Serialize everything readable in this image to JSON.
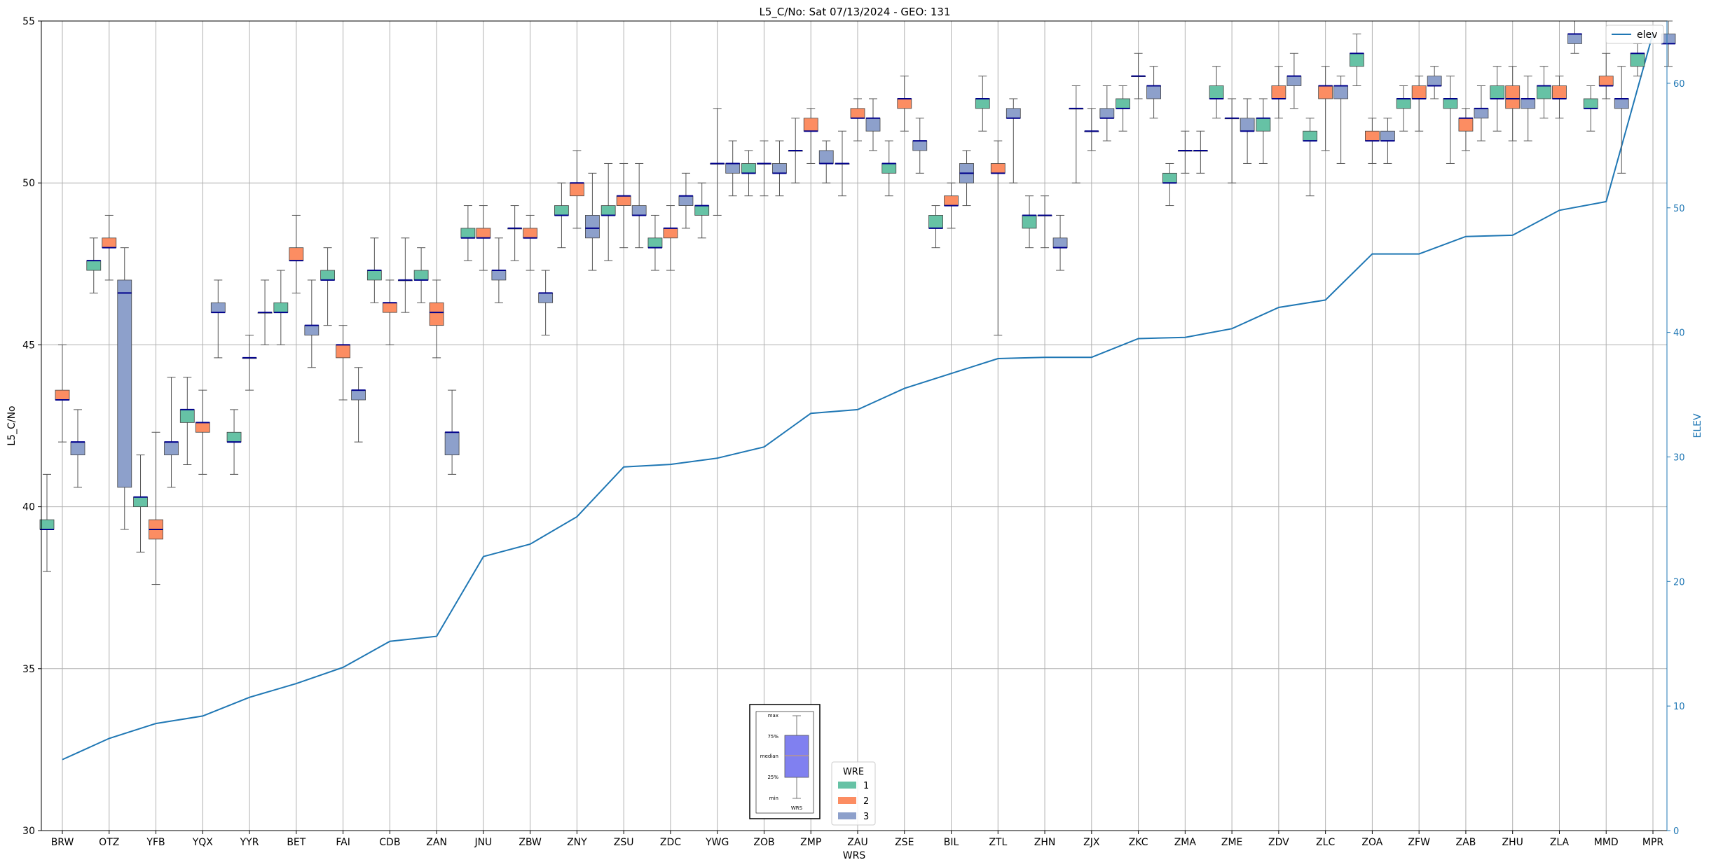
{
  "chart_data": {
    "type": "box",
    "title": "L5_C/No: Sat 07/13/2024 - GEO: 131",
    "xlabel": "WRS",
    "ylabel": "L5_C/No",
    "y2label": "ELEV",
    "ylim": [
      30,
      55
    ],
    "y2lim": [
      0,
      65
    ],
    "yticks": [
      30,
      35,
      40,
      45,
      50,
      55
    ],
    "y2ticks": [
      0,
      10,
      20,
      30,
      40,
      50,
      60
    ],
    "grid": true,
    "categories": [
      "BRW",
      "OTZ",
      "YFB",
      "YQX",
      "YYR",
      "BET",
      "FAI",
      "CDB",
      "ZAN",
      "JNU",
      "ZBW",
      "ZNY",
      "ZSU",
      "ZDC",
      "YWG",
      "ZOB",
      "ZMP",
      "ZAU",
      "ZSE",
      "BIL",
      "ZTL",
      "ZHN",
      "ZJX",
      "ZKC",
      "ZMA",
      "ZME",
      "ZDV",
      "ZLC",
      "ZOA",
      "ZFW",
      "ZAB",
      "ZHU",
      "ZLA",
      "MMD",
      "MPR"
    ],
    "series_colors": {
      "1": "#66c2a5",
      "2": "#fc8d62",
      "3": "#8da0cb"
    },
    "median_color": "#00008b",
    "legend": {
      "title": "WRE",
      "entries": [
        "1",
        "2",
        "3"
      ],
      "placement": "bottom-center"
    },
    "line_legend": {
      "label": "elev",
      "placement": "top-right"
    },
    "elev": [
      5.7,
      7.4,
      8.6,
      9.2,
      10.7,
      11.8,
      13.1,
      15.2,
      15.6,
      22.0,
      23.0,
      25.2,
      29.2,
      29.4,
      29.9,
      30.8,
      33.5,
      33.8,
      35.5,
      36.7,
      37.9,
      38.0,
      38.0,
      39.5,
      39.6,
      40.3,
      42.0,
      42.6,
      46.3,
      46.3,
      47.7,
      47.8,
      49.8,
      50.5,
      64.0
    ],
    "boxes": [
      {
        "station": "BRW",
        "wre": "1",
        "min": 38.0,
        "q1": 39.3,
        "median": 39.3,
        "q3": 39.6,
        "max": 41.0
      },
      {
        "station": "BRW",
        "wre": "2",
        "min": 42.0,
        "q1": 43.3,
        "median": 43.3,
        "q3": 43.6,
        "max": 45.0
      },
      {
        "station": "BRW",
        "wre": "3",
        "min": 40.6,
        "q1": 41.6,
        "median": 42.0,
        "q3": 42.0,
        "max": 43.0
      },
      {
        "station": "OTZ",
        "wre": "1",
        "min": 46.6,
        "q1": 47.3,
        "median": 47.6,
        "q3": 47.6,
        "max": 48.3
      },
      {
        "station": "OTZ",
        "wre": "2",
        "min": 47.0,
        "q1": 48.0,
        "median": 48.0,
        "q3": 48.3,
        "max": 49.0
      },
      {
        "station": "OTZ",
        "wre": "3",
        "min": 39.3,
        "q1": 40.6,
        "median": 46.6,
        "q3": 47.0,
        "max": 48.0
      },
      {
        "station": "YFB",
        "wre": "1",
        "min": 38.6,
        "q1": 40.0,
        "median": 40.3,
        "q3": 40.3,
        "max": 41.6
      },
      {
        "station": "YFB",
        "wre": "2",
        "min": 37.6,
        "q1": 39.0,
        "median": 39.3,
        "q3": 39.6,
        "max": 42.3
      },
      {
        "station": "YFB",
        "wre": "3",
        "min": 40.6,
        "q1": 41.6,
        "median": 42.0,
        "q3": 42.0,
        "max": 44.0
      },
      {
        "station": "YQX",
        "wre": "1",
        "min": 41.3,
        "q1": 42.6,
        "median": 43.0,
        "q3": 43.0,
        "max": 44.0
      },
      {
        "station": "YQX",
        "wre": "2",
        "min": 41.0,
        "q1": 42.3,
        "median": 42.6,
        "q3": 42.6,
        "max": 43.6
      },
      {
        "station": "YQX",
        "wre": "3",
        "min": 44.6,
        "q1": 46.0,
        "median": 46.0,
        "q3": 46.3,
        "max": 47.0
      },
      {
        "station": "YYR",
        "wre": "1",
        "min": 41.0,
        "q1": 42.0,
        "median": 42.0,
        "q3": 42.3,
        "max": 43.0
      },
      {
        "station": "YYR",
        "wre": "2",
        "min": 43.6,
        "q1": 44.6,
        "median": 44.6,
        "q3": 44.6,
        "max": 45.3
      },
      {
        "station": "YYR",
        "wre": "3",
        "min": 45.0,
        "q1": 46.0,
        "median": 46.0,
        "q3": 46.0,
        "max": 47.0
      },
      {
        "station": "BET",
        "wre": "1",
        "min": 45.0,
        "q1": 46.0,
        "median": 46.0,
        "q3": 46.3,
        "max": 47.3
      },
      {
        "station": "BET",
        "wre": "2",
        "min": 46.6,
        "q1": 47.6,
        "median": 47.6,
        "q3": 48.0,
        "max": 49.0
      },
      {
        "station": "BET",
        "wre": "3",
        "min": 44.3,
        "q1": 45.3,
        "median": 45.6,
        "q3": 45.6,
        "max": 47.0
      },
      {
        "station": "FAI",
        "wre": "1",
        "min": 45.6,
        "q1": 47.0,
        "median": 47.0,
        "q3": 47.3,
        "max": 48.0
      },
      {
        "station": "FAI",
        "wre": "2",
        "min": 43.3,
        "q1": 44.6,
        "median": 45.0,
        "q3": 45.0,
        "max": 45.6
      },
      {
        "station": "FAI",
        "wre": "3",
        "min": 42.0,
        "q1": 43.3,
        "median": 43.6,
        "q3": 43.6,
        "max": 44.3
      },
      {
        "station": "CDB",
        "wre": "1",
        "min": 46.3,
        "q1": 47.0,
        "median": 47.3,
        "q3": 47.3,
        "max": 48.3
      },
      {
        "station": "CDB",
        "wre": "2",
        "min": 45.0,
        "q1": 46.0,
        "median": 46.3,
        "q3": 46.3,
        "max": 47.0
      },
      {
        "station": "CDB",
        "wre": "3",
        "min": 46.0,
        "q1": 47.0,
        "median": 47.0,
        "q3": 47.0,
        "max": 48.3
      },
      {
        "station": "ZAN",
        "wre": "1",
        "min": 46.3,
        "q1": 47.0,
        "median": 47.0,
        "q3": 47.3,
        "max": 48.0
      },
      {
        "station": "ZAN",
        "wre": "2",
        "min": 44.6,
        "q1": 45.6,
        "median": 46.0,
        "q3": 46.3,
        "max": 47.0
      },
      {
        "station": "ZAN",
        "wre": "3",
        "min": 41.0,
        "q1": 41.6,
        "median": 42.3,
        "q3": 42.3,
        "max": 43.6
      },
      {
        "station": "JNU",
        "wre": "1",
        "min": 47.6,
        "q1": 48.3,
        "median": 48.3,
        "q3": 48.6,
        "max": 49.3
      },
      {
        "station": "JNU",
        "wre": "2",
        "min": 47.3,
        "q1": 48.3,
        "median": 48.3,
        "q3": 48.6,
        "max": 49.3
      },
      {
        "station": "JNU",
        "wre": "3",
        "min": 46.3,
        "q1": 47.0,
        "median": 47.3,
        "q3": 47.3,
        "max": 48.3
      },
      {
        "station": "ZBW",
        "wre": "1",
        "min": 47.6,
        "q1": 48.6,
        "median": 48.6,
        "q3": 48.6,
        "max": 49.3
      },
      {
        "station": "ZBW",
        "wre": "2",
        "min": 47.3,
        "q1": 48.3,
        "median": 48.3,
        "q3": 48.6,
        "max": 49.0
      },
      {
        "station": "ZBW",
        "wre": "3",
        "min": 45.3,
        "q1": 46.3,
        "median": 46.6,
        "q3": 46.6,
        "max": 47.3
      },
      {
        "station": "ZNY",
        "wre": "1",
        "min": 48.0,
        "q1": 49.0,
        "median": 49.0,
        "q3": 49.3,
        "max": 50.0
      },
      {
        "station": "ZNY",
        "wre": "2",
        "min": 48.6,
        "q1": 49.6,
        "median": 50.0,
        "q3": 50.0,
        "max": 51.0
      },
      {
        "station": "ZNY",
        "wre": "3",
        "min": 47.3,
        "q1": 48.3,
        "median": 48.6,
        "q3": 49.0,
        "max": 50.3
      },
      {
        "station": "ZSU",
        "wre": "1",
        "min": 47.6,
        "q1": 49.0,
        "median": 49.0,
        "q3": 49.3,
        "max": 50.6
      },
      {
        "station": "ZSU",
        "wre": "2",
        "min": 48.0,
        "q1": 49.3,
        "median": 49.6,
        "q3": 49.6,
        "max": 50.6
      },
      {
        "station": "ZSU",
        "wre": "3",
        "min": 48.0,
        "q1": 49.0,
        "median": 49.0,
        "q3": 49.3,
        "max": 50.6
      },
      {
        "station": "ZDC",
        "wre": "1",
        "min": 47.3,
        "q1": 48.0,
        "median": 48.0,
        "q3": 48.3,
        "max": 49.0
      },
      {
        "station": "ZDC",
        "wre": "2",
        "min": 47.3,
        "q1": 48.3,
        "median": 48.6,
        "q3": 48.6,
        "max": 49.3
      },
      {
        "station": "ZDC",
        "wre": "3",
        "min": 48.6,
        "q1": 49.3,
        "median": 49.6,
        "q3": 49.6,
        "max": 50.3
      },
      {
        "station": "YWG",
        "wre": "1",
        "min": 48.3,
        "q1": 49.0,
        "median": 49.3,
        "q3": 49.3,
        "max": 50.0
      },
      {
        "station": "YWG",
        "wre": "2",
        "min": 49.0,
        "q1": 50.6,
        "median": 50.6,
        "q3": 50.6,
        "max": 52.3
      },
      {
        "station": "YWG",
        "wre": "3",
        "min": 49.6,
        "q1": 50.3,
        "median": 50.6,
        "q3": 50.6,
        "max": 51.3
      },
      {
        "station": "ZOB",
        "wre": "1",
        "min": 49.6,
        "q1": 50.3,
        "median": 50.3,
        "q3": 50.6,
        "max": 51.0
      },
      {
        "station": "ZOB",
        "wre": "2",
        "min": 49.6,
        "q1": 50.6,
        "median": 50.6,
        "q3": 50.6,
        "max": 51.3
      },
      {
        "station": "ZOB",
        "wre": "3",
        "min": 49.6,
        "q1": 50.3,
        "median": 50.3,
        "q3": 50.6,
        "max": 51.3
      },
      {
        "station": "ZMP",
        "wre": "1",
        "min": 50.0,
        "q1": 51.0,
        "median": 51.0,
        "q3": 51.0,
        "max": 52.0
      },
      {
        "station": "ZMP",
        "wre": "2",
        "min": 50.6,
        "q1": 51.6,
        "median": 51.6,
        "q3": 52.0,
        "max": 52.3
      },
      {
        "station": "ZMP",
        "wre": "3",
        "min": 50.0,
        "q1": 50.6,
        "median": 50.6,
        "q3": 51.0,
        "max": 51.3
      },
      {
        "station": "ZAU",
        "wre": "1",
        "min": 49.6,
        "q1": 50.6,
        "median": 50.6,
        "q3": 50.6,
        "max": 51.6
      },
      {
        "station": "ZAU",
        "wre": "2",
        "min": 51.3,
        "q1": 52.0,
        "median": 52.0,
        "q3": 52.3,
        "max": 52.6
      },
      {
        "station": "ZAU",
        "wre": "3",
        "min": 51.0,
        "q1": 51.6,
        "median": 52.0,
        "q3": 52.0,
        "max": 52.6
      },
      {
        "station": "ZSE",
        "wre": "1",
        "min": 49.6,
        "q1": 50.3,
        "median": 50.6,
        "q3": 50.6,
        "max": 51.3
      },
      {
        "station": "ZSE",
        "wre": "2",
        "min": 51.6,
        "q1": 52.3,
        "median": 52.6,
        "q3": 52.6,
        "max": 53.3
      },
      {
        "station": "ZSE",
        "wre": "3",
        "min": 50.3,
        "q1": 51.0,
        "median": 51.3,
        "q3": 51.3,
        "max": 52.0
      },
      {
        "station": "BIL",
        "wre": "1",
        "min": 48.0,
        "q1": 48.6,
        "median": 48.6,
        "q3": 49.0,
        "max": 49.3
      },
      {
        "station": "BIL",
        "wre": "2",
        "min": 48.6,
        "q1": 49.3,
        "median": 49.3,
        "q3": 49.6,
        "max": 50.0
      },
      {
        "station": "BIL",
        "wre": "3",
        "min": 49.3,
        "q1": 50.0,
        "median": 50.3,
        "q3": 50.6,
        "max": 51.0
      },
      {
        "station": "ZTL",
        "wre": "1",
        "min": 51.6,
        "q1": 52.3,
        "median": 52.6,
        "q3": 52.6,
        "max": 53.3
      },
      {
        "station": "ZTL",
        "wre": "2",
        "min": 45.3,
        "q1": 50.3,
        "median": 50.3,
        "q3": 50.6,
        "max": 51.3
      },
      {
        "station": "ZTL",
        "wre": "3",
        "min": 50.0,
        "q1": 52.0,
        "median": 52.0,
        "q3": 52.3,
        "max": 52.6
      },
      {
        "station": "ZHN",
        "wre": "1",
        "min": 48.0,
        "q1": 48.6,
        "median": 49.0,
        "q3": 49.0,
        "max": 49.6
      },
      {
        "station": "ZHN",
        "wre": "2",
        "min": 48.0,
        "q1": 49.0,
        "median": 49.0,
        "q3": 49.0,
        "max": 49.6
      },
      {
        "station": "ZHN",
        "wre": "3",
        "min": 47.3,
        "q1": 48.0,
        "median": 48.0,
        "q3": 48.3,
        "max": 49.0
      },
      {
        "station": "ZJX",
        "wre": "1",
        "min": 50.0,
        "q1": 52.3,
        "median": 52.3,
        "q3": 52.3,
        "max": 53.0
      },
      {
        "station": "ZJX",
        "wre": "2",
        "min": 51.0,
        "q1": 51.6,
        "median": 51.6,
        "q3": 51.6,
        "max": 52.3
      },
      {
        "station": "ZJX",
        "wre": "3",
        "min": 51.3,
        "q1": 52.0,
        "median": 52.0,
        "q3": 52.3,
        "max": 53.0
      },
      {
        "station": "ZKC",
        "wre": "1",
        "min": 51.6,
        "q1": 52.3,
        "median": 52.3,
        "q3": 52.6,
        "max": 53.0
      },
      {
        "station": "ZKC",
        "wre": "2",
        "min": 52.6,
        "q1": 53.3,
        "median": 53.3,
        "q3": 53.3,
        "max": 54.0
      },
      {
        "station": "ZKC",
        "wre": "3",
        "min": 52.0,
        "q1": 52.6,
        "median": 53.0,
        "q3": 53.0,
        "max": 53.6
      },
      {
        "station": "ZMA",
        "wre": "1",
        "min": 49.3,
        "q1": 50.0,
        "median": 50.0,
        "q3": 50.3,
        "max": 50.6
      },
      {
        "station": "ZMA",
        "wre": "2",
        "min": 50.3,
        "q1": 51.0,
        "median": 51.0,
        "q3": 51.0,
        "max": 51.6
      },
      {
        "station": "ZMA",
        "wre": "3",
        "min": 50.3,
        "q1": 51.0,
        "median": 51.0,
        "q3": 51.0,
        "max": 51.6
      },
      {
        "station": "ZME",
        "wre": "1",
        "min": 52.0,
        "q1": 52.6,
        "median": 52.6,
        "q3": 53.0,
        "max": 53.6
      },
      {
        "station": "ZME",
        "wre": "2",
        "min": 50.0,
        "q1": 52.0,
        "median": 52.0,
        "q3": 52.0,
        "max": 52.6
      },
      {
        "station": "ZME",
        "wre": "3",
        "min": 50.6,
        "q1": 51.6,
        "median": 51.6,
        "q3": 52.0,
        "max": 52.6
      },
      {
        "station": "ZDV",
        "wre": "1",
        "min": 50.6,
        "q1": 51.6,
        "median": 52.0,
        "q3": 52.0,
        "max": 52.6
      },
      {
        "station": "ZDV",
        "wre": "2",
        "min": 52.0,
        "q1": 52.6,
        "median": 52.6,
        "q3": 53.0,
        "max": 53.6
      },
      {
        "station": "ZDV",
        "wre": "3",
        "min": 52.3,
        "q1": 53.0,
        "median": 53.3,
        "q3": 53.3,
        "max": 54.0
      },
      {
        "station": "ZLC",
        "wre": "1",
        "min": 49.6,
        "q1": 51.3,
        "median": 51.3,
        "q3": 51.6,
        "max": 52.0
      },
      {
        "station": "ZLC",
        "wre": "2",
        "min": 51.0,
        "q1": 52.6,
        "median": 53.0,
        "q3": 53.0,
        "max": 53.6
      },
      {
        "station": "ZLC",
        "wre": "3",
        "min": 50.6,
        "q1": 52.6,
        "median": 53.0,
        "q3": 53.0,
        "max": 53.3
      },
      {
        "station": "ZOA",
        "wre": "1",
        "min": 53.0,
        "q1": 53.6,
        "median": 54.0,
        "q3": 54.0,
        "max": 54.6
      },
      {
        "station": "ZOA",
        "wre": "2",
        "min": 50.6,
        "q1": 51.3,
        "median": 51.3,
        "q3": 51.6,
        "max": 52.0
      },
      {
        "station": "ZOA",
        "wre": "3",
        "min": 50.6,
        "q1": 51.3,
        "median": 51.3,
        "q3": 51.6,
        "max": 52.0
      },
      {
        "station": "ZFW",
        "wre": "1",
        "min": 51.6,
        "q1": 52.3,
        "median": 52.6,
        "q3": 52.6,
        "max": 53.0
      },
      {
        "station": "ZFW",
        "wre": "2",
        "min": 51.6,
        "q1": 52.6,
        "median": 52.6,
        "q3": 53.0,
        "max": 53.3
      },
      {
        "station": "ZFW",
        "wre": "3",
        "min": 52.6,
        "q1": 53.0,
        "median": 53.0,
        "q3": 53.3,
        "max": 53.6
      },
      {
        "station": "ZAB",
        "wre": "1",
        "min": 50.6,
        "q1": 52.3,
        "median": 52.6,
        "q3": 52.6,
        "max": 53.3
      },
      {
        "station": "ZAB",
        "wre": "2",
        "min": 51.0,
        "q1": 51.6,
        "median": 52.0,
        "q3": 52.0,
        "max": 52.3
      },
      {
        "station": "ZAB",
        "wre": "3",
        "min": 51.3,
        "q1": 52.0,
        "median": 52.3,
        "q3": 52.3,
        "max": 53.0
      },
      {
        "station": "ZHU",
        "wre": "1",
        "min": 51.6,
        "q1": 52.6,
        "median": 52.6,
        "q3": 53.0,
        "max": 53.6
      },
      {
        "station": "ZHU",
        "wre": "2",
        "min": 51.3,
        "q1": 52.3,
        "median": 52.6,
        "q3": 53.0,
        "max": 53.6
      },
      {
        "station": "ZHU",
        "wre": "3",
        "min": 51.3,
        "q1": 52.3,
        "median": 52.6,
        "q3": 52.6,
        "max": 53.3
      },
      {
        "station": "ZLA",
        "wre": "1",
        "min": 52.0,
        "q1": 52.6,
        "median": 53.0,
        "q3": 53.0,
        "max": 53.6
      },
      {
        "station": "ZLA",
        "wre": "2",
        "min": 52.0,
        "q1": 52.6,
        "median": 52.6,
        "q3": 53.0,
        "max": 53.3
      },
      {
        "station": "ZLA",
        "wre": "3",
        "min": 54.0,
        "q1": 54.3,
        "median": 54.6,
        "q3": 54.6,
        "max": 55.0
      },
      {
        "station": "MMD",
        "wre": "1",
        "min": 51.6,
        "q1": 52.3,
        "median": 52.3,
        "q3": 52.6,
        "max": 53.0
      },
      {
        "station": "MMD",
        "wre": "2",
        "min": 52.6,
        "q1": 53.0,
        "median": 53.0,
        "q3": 53.3,
        "max": 54.0
      },
      {
        "station": "MMD",
        "wre": "3",
        "min": 50.3,
        "q1": 52.3,
        "median": 52.6,
        "q3": 52.6,
        "max": 53.6
      },
      {
        "station": "MPR",
        "wre": "1",
        "min": 53.3,
        "q1": 53.6,
        "median": 54.0,
        "q3": 54.0,
        "max": 54.3
      },
      {
        "station": "MPR",
        "wre": "3",
        "min": 53.6,
        "q1": 54.3,
        "median": 54.3,
        "q3": 54.6,
        "max": 55.0
      }
    ]
  },
  "inset_key": {
    "labels": [
      "max",
      "75%",
      "median",
      "25%",
      "min"
    ],
    "xlabel": "WRS",
    "box_color": "#8080f0",
    "median_color": "#d2a060"
  }
}
